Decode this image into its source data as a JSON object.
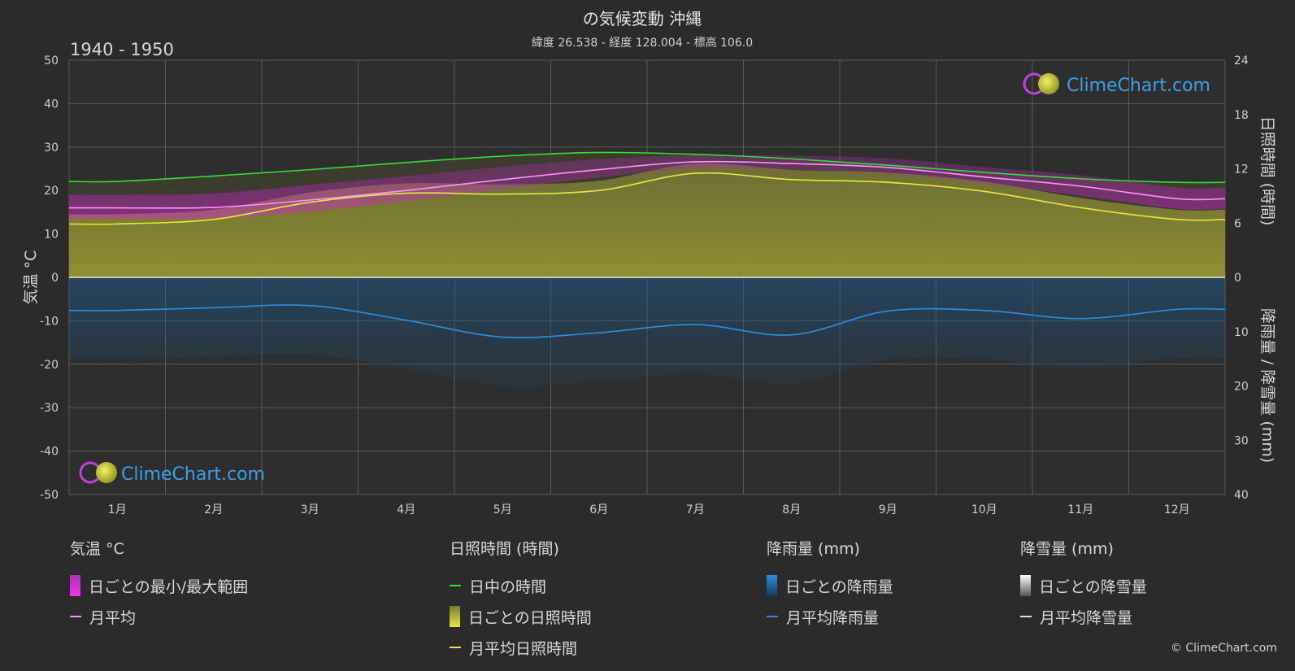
{
  "title": "の気候変動 沖縄",
  "subtitle": "緯度 26.538 - 経度 128.004 - 標高 106.0",
  "period": "1940 - 1950",
  "logo_text": "ClimeChart.com",
  "copyright": "© ClimeChart.com",
  "colors": {
    "background": "#2b2b2b",
    "temp_range": "#e020e0",
    "temp_avg": "#ff90ff",
    "daylight": "#33dd33",
    "sunshine_fill": "#b8b830",
    "sunshine_avg": "#e8e840",
    "rain_fill": "#1a5f96",
    "rain_avg": "#2a8fe0",
    "snow_avg": "#e0e0e0"
  },
  "chart_data": {
    "type": "line",
    "categories": [
      "1月",
      "2月",
      "3月",
      "4月",
      "5月",
      "6月",
      "7月",
      "8月",
      "9月",
      "10月",
      "11月",
      "12月"
    ],
    "axes": {
      "left": {
        "label": "気温 °C",
        "range": [
          -50,
          50
        ],
        "ticks": [
          "50",
          "40",
          "30",
          "20",
          "10",
          "0",
          "-10",
          "-20",
          "-30",
          "-40",
          "-50"
        ]
      },
      "right_top": {
        "label": "日照時間 (時間)",
        "range": [
          0,
          24
        ],
        "ticks": [
          "24",
          "18",
          "12",
          "6",
          "0"
        ]
      },
      "right_bottom": {
        "label": "降雨量 / 降雪量 (mm)",
        "range": [
          0,
          40
        ],
        "ticks": [
          "0",
          "10",
          "20",
          "30",
          "40"
        ]
      }
    },
    "grid": true,
    "series": [
      {
        "name": "日中の時間",
        "axis": "right_top",
        "values": [
          10.6,
          11.2,
          11.9,
          12.7,
          13.4,
          13.8,
          13.6,
          13.1,
          12.4,
          11.6,
          10.9,
          10.5
        ]
      },
      {
        "name": "月平均日照時間",
        "axis": "right_top",
        "values": [
          5.9,
          6.4,
          8.3,
          9.3,
          9.2,
          9.6,
          11.5,
          10.8,
          10.5,
          9.5,
          7.7,
          6.4
        ]
      },
      {
        "name": "月平均",
        "axis": "left",
        "values": [
          16.0,
          16.1,
          17.8,
          20.0,
          22.5,
          24.8,
          26.6,
          26.2,
          25.3,
          23.1,
          21.0,
          18.1
        ]
      },
      {
        "name": "日ごとの最小/最大範囲",
        "axis": "left",
        "type": "band",
        "low": [
          13.5,
          13.6,
          15.2,
          17.6,
          20.3,
          23.0,
          25.0,
          24.8,
          23.9,
          21.6,
          18.8,
          15.8
        ],
        "high": [
          19.0,
          19.3,
          21.3,
          23.3,
          25.5,
          27.2,
          28.2,
          28.0,
          27.4,
          25.4,
          23.5,
          20.7
        ]
      },
      {
        "name": "月平均降雨量",
        "axis": "right_bottom",
        "values": [
          6.1,
          5.6,
          5.2,
          7.9,
          11.0,
          10.2,
          8.7,
          10.6,
          6.2,
          6.1,
          7.6,
          5.9
        ]
      },
      {
        "name": "月平均降雪量",
        "axis": "right_bottom",
        "values": [
          0,
          0,
          0,
          0,
          0,
          0,
          0,
          0,
          0,
          0,
          0,
          0
        ]
      }
    ]
  },
  "legend": {
    "temperature": {
      "title": "気温 °C",
      "range": "日ごとの最小/最大範囲",
      "avg": "月平均"
    },
    "sunshine": {
      "title": "日照時間 (時間)",
      "daylight": "日中の時間",
      "daily": "日ごとの日照時間",
      "avg": "月平均日照時間"
    },
    "rain": {
      "title": "降雨量 (mm)",
      "daily": "日ごとの降雨量",
      "avg": "月平均降雨量"
    },
    "snow": {
      "title": "降雪量 (mm)",
      "daily": "日ごとの降雪量",
      "avg": "月平均降雪量"
    }
  }
}
